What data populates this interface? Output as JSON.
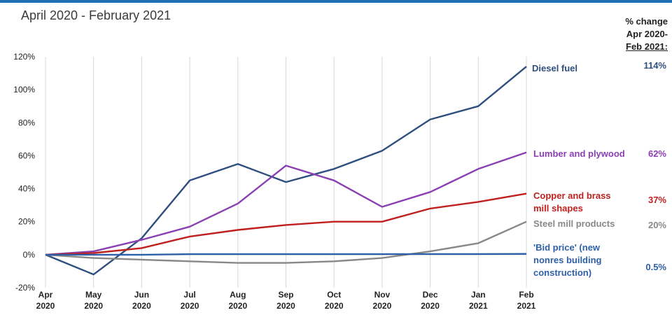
{
  "subtitle": "April 2020 - February 2021",
  "change_header": [
    "% change",
    "Apr 2020-",
    "Feb 2021:"
  ],
  "chart_data": {
    "type": "line",
    "title": "April 2020 - February 2021",
    "xlabel": "",
    "ylabel": "",
    "x": [
      "Apr 2020",
      "May 2020",
      "Jun 2020",
      "Jul 2020",
      "Aug 2020",
      "Sep 2020",
      "Oct 2020",
      "Nov 2020",
      "Dec 2020",
      "Jan 2021",
      "Feb 2021"
    ],
    "x_ticks": [
      [
        "Apr",
        "2020"
      ],
      [
        "May",
        "2020"
      ],
      [
        "Jun",
        "2020"
      ],
      [
        "Jul",
        "2020"
      ],
      [
        "Aug",
        "2020"
      ],
      [
        "Sep",
        "2020"
      ],
      [
        "Oct",
        "2020"
      ],
      [
        "Nov",
        "2020"
      ],
      [
        "Dec",
        "2020"
      ],
      [
        "Jan",
        "2021"
      ],
      [
        "Feb",
        "2021"
      ]
    ],
    "y_ticks": [
      "120%",
      "100%",
      "80%",
      "60%",
      "40%",
      "20%",
      "0%",
      "-20%"
    ],
    "ylim": [
      -20,
      120
    ],
    "grid": "vertical",
    "series": [
      {
        "name": "Diesel fuel",
        "label_lines": [
          "Diesel fuel"
        ],
        "change": "114%",
        "color": "#2f4f7f",
        "values": [
          0,
          -12,
          10,
          45,
          55,
          44,
          52,
          63,
          82,
          90,
          114
        ]
      },
      {
        "name": "Lumber and plywood",
        "label_lines": [
          "Lumber and plywood"
        ],
        "change": "62%",
        "color": "#8a3fb3",
        "values": [
          0,
          2,
          9,
          17,
          31,
          54,
          45,
          29,
          38,
          52,
          62
        ]
      },
      {
        "name": "Copper and brass mill shapes",
        "label_lines": [
          "Copper and brass",
          "mill shapes"
        ],
        "change": "37%",
        "color": "#c0201e",
        "values": [
          0,
          1,
          4,
          11,
          15,
          18,
          20,
          20,
          28,
          32,
          37
        ]
      },
      {
        "name": "Steel mill products",
        "label_lines": [
          "Steel mill products"
        ],
        "change": "20%",
        "color": "#888888",
        "values": [
          0,
          -2,
          -3,
          -4,
          -5,
          -5,
          -4,
          -2,
          2,
          7,
          20
        ]
      },
      {
        "name": "'Bid price' (new nonres building construction)",
        "label_lines": [
          "'Bid price' (new",
          "nonres building",
          "construction)"
        ],
        "change": "0.5%",
        "color": "#2e5fa8",
        "values": [
          0,
          0,
          0,
          0.3,
          0.3,
          0.3,
          0.3,
          0.3,
          0.4,
          0.4,
          0.5
        ]
      }
    ]
  }
}
